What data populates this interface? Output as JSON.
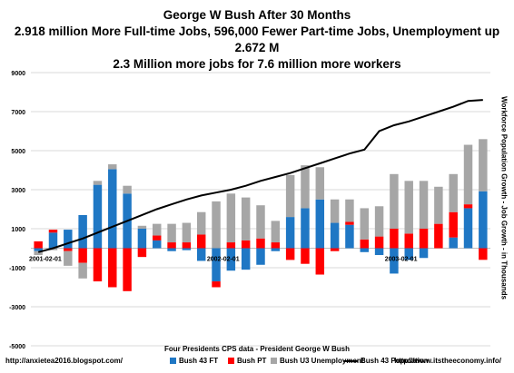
{
  "chart_data": {
    "type": "bar",
    "title": "George W Bush After 30 Months",
    "subtitle": "2.918 million More Full-time Jobs, 596,000 Fewer Part-time Jobs, Unemployment up 2.672 M",
    "subtitle2": "2.3 Million more jobs for 7.6 million more workers",
    "ylabel_right": "Workforce Population Growth - Job Growth - in Thousands",
    "ylim": [
      -5000,
      9000
    ],
    "yticks": [
      -5000,
      -3000,
      -1000,
      1000,
      3000,
      5000,
      7000,
      9000
    ],
    "ytick_labels": [
      "-5000",
      "-3000",
      "-1000",
      "1000",
      "3000",
      "5000",
      "7000",
      "9000"
    ],
    "x_labels": [
      {
        "index": 0,
        "label": "2001-02-01"
      },
      {
        "index": 12,
        "label": "2002-02-01"
      },
      {
        "index": 24,
        "label": "2003-02-01"
      }
    ],
    "grid": true,
    "legend_position": "bottom",
    "colors": {
      "ft": "#1f77c4",
      "pt": "#ff0000",
      "unemp": "#a6a6a6",
      "pop": "#000000"
    },
    "series": [
      {
        "name": "Bush 43 FT",
        "key": "ft",
        "values": [
          -150,
          800,
          950,
          1700,
          3250,
          4050,
          2800,
          1000,
          400,
          -150,
          -100,
          -650,
          -1700,
          -1150,
          -1100,
          -850,
          -150,
          1600,
          2050,
          2500,
          1300,
          1200,
          -200,
          -350,
          -1300,
          -600,
          -500,
          0,
          550,
          2050,
          2918
        ]
      },
      {
        "name": "Bush PT",
        "key": "pt",
        "values": [
          350,
          150,
          -150,
          -750,
          -1700,
          -2000,
          -2200,
          -450,
          250,
          300,
          300,
          700,
          -300,
          300,
          400,
          500,
          300,
          -600,
          -800,
          -1350,
          -150,
          150,
          450,
          600,
          1000,
          750,
          1000,
          1250,
          1300,
          200,
          -596
        ]
      },
      {
        "name": "Bush U3 Unemployment",
        "key": "unemp",
        "values": [
          -200,
          -100,
          -750,
          -800,
          200,
          250,
          400,
          150,
          600,
          950,
          1000,
          1150,
          2400,
          2500,
          2200,
          1700,
          1100,
          2150,
          2200,
          1650,
          1200,
          1150,
          1600,
          1550,
          2800,
          2700,
          2450,
          1900,
          1950,
          3050,
          2672
        ]
      },
      {
        "name": "Bush 43 Population",
        "key": "pop",
        "type": "line",
        "values": [
          -200,
          0,
          250,
          500,
          800,
          1100,
          1400,
          1700,
          2000,
          2250,
          2500,
          2700,
          2850,
          3000,
          3200,
          3450,
          3650,
          3850,
          4100,
          4350,
          4600,
          4850,
          5050,
          6000,
          6300,
          6500,
          6750,
          7000,
          7250,
          7550,
          7600
        ]
      }
    ]
  },
  "footer": {
    "source": "Four Presidents CPS data - President George W Bush",
    "url_left": "http://anxietea2016.blogspot.com/",
    "url_right": "http://www.itstheeconomy.info/"
  }
}
